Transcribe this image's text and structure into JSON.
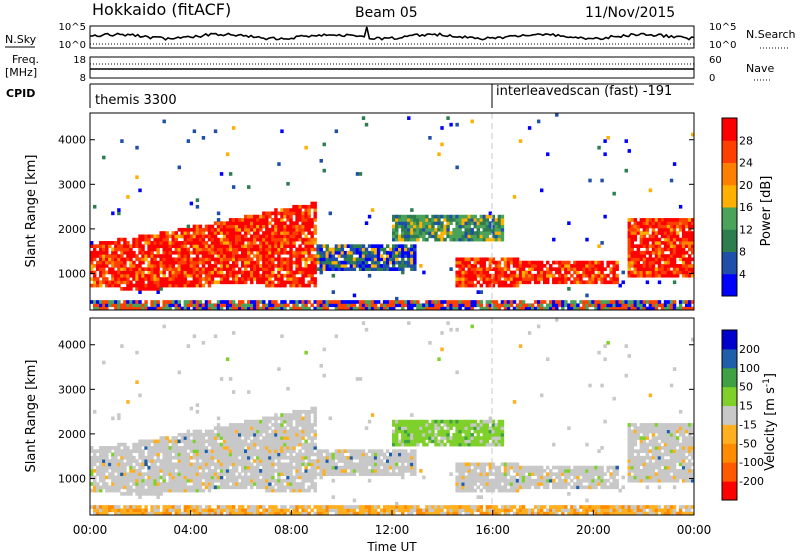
{
  "header": {
    "station": "Hokkaido (fitACF)",
    "beam": "Beam 05",
    "date": "11/Nov/2015"
  },
  "top_panels": {
    "nsky_label": "N.Sky",
    "nsearch_label": "N.Search",
    "nsky_ticks": [
      "10^5",
      "10^0"
    ],
    "nsearch_ticks": [
      "10^5",
      "10^0"
    ],
    "freq_label_1": "Freq.",
    "freq_label_2": "[MHz]",
    "freq_ticks": [
      "18",
      "8"
    ],
    "nave_label": "Nave",
    "nave_ticks": [
      "60",
      "0"
    ],
    "cpid_label": "CPID",
    "cpid_segments": [
      {
        "start": 0,
        "label": "themis 3300"
      },
      {
        "start": 16,
        "label": "interleavedscan (fast) -191"
      }
    ]
  },
  "colors": {
    "power": [
      "#0000ff",
      "#1f4fa8",
      "#2e7d4f",
      "#4aa35a",
      "#ffb000",
      "#ff7f00",
      "#ff4000",
      "#ff0000"
    ],
    "velocity": [
      "#ff0000",
      "#ff5a00",
      "#ff8c00",
      "#ffb020",
      "#c8c8c8",
      "#7fd02a",
      "#3fa045",
      "#1f5faa",
      "#0000cc"
    ],
    "dashed_line": "#c8c8c8"
  },
  "chart_data": [
    {
      "type": "heatmap",
      "name": "Power",
      "ylabel": "Slant Range [km]",
      "xlim": [
        0,
        24
      ],
      "ylim": [
        180,
        4600
      ],
      "yticks": [
        "1000",
        "2000",
        "3000",
        "4000"
      ],
      "colorbar_label": "Power [dB]",
      "colorbar_ticks": [
        "4",
        "8",
        "12",
        "16",
        "20",
        "24",
        "28"
      ],
      "colorbar_range": [
        0,
        32
      ]
    },
    {
      "type": "heatmap",
      "name": "Velocity",
      "ylabel": "Slant Range [km]",
      "xlabel": "Time UT",
      "xlim": [
        0,
        24
      ],
      "ylim": [
        180,
        4600
      ],
      "yticks": [
        "1000",
        "2000",
        "3000",
        "4000"
      ],
      "xticks": [
        "00:00",
        "04:00",
        "08:00",
        "12:00",
        "16:00",
        "20:00",
        "00:00"
      ],
      "colorbar_label_main": "Velocity [m s",
      "colorbar_label_sup": "-1",
      "colorbar_label_end": "]",
      "colorbar_ticks": [
        "-200",
        "-100",
        "-50",
        "-15",
        "15",
        "50",
        "100",
        "200"
      ]
    }
  ]
}
